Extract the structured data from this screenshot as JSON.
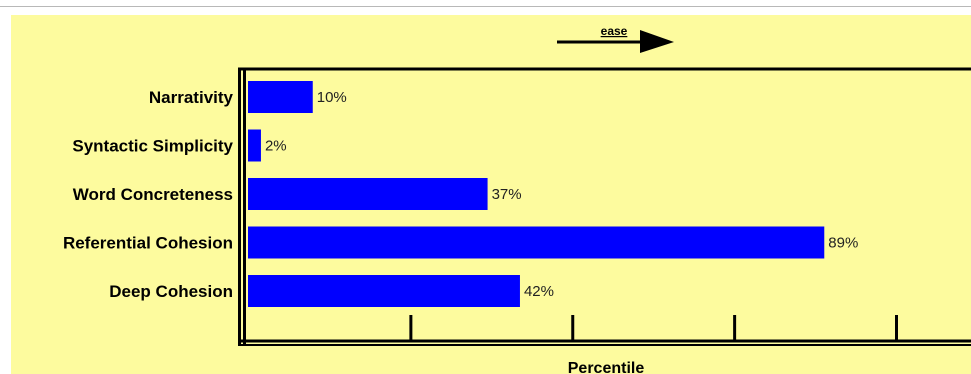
{
  "chart_data": {
    "type": "bar",
    "orientation": "horizontal",
    "categories": [
      "Narrativity",
      "Syntactic Simplicity",
      "Word Concreteness",
      "Referential Cohesion",
      "Deep Cohesion"
    ],
    "values": [
      10,
      2,
      37,
      89,
      42
    ],
    "value_labels": [
      "10%",
      "2%",
      "37%",
      "89%",
      "42%"
    ],
    "xlabel": "Percentile",
    "xlim": [
      0,
      100
    ],
    "annotation": "ease",
    "grid": false,
    "bar_color": "#0000ff",
    "background_color": "#fdfb9e"
  }
}
